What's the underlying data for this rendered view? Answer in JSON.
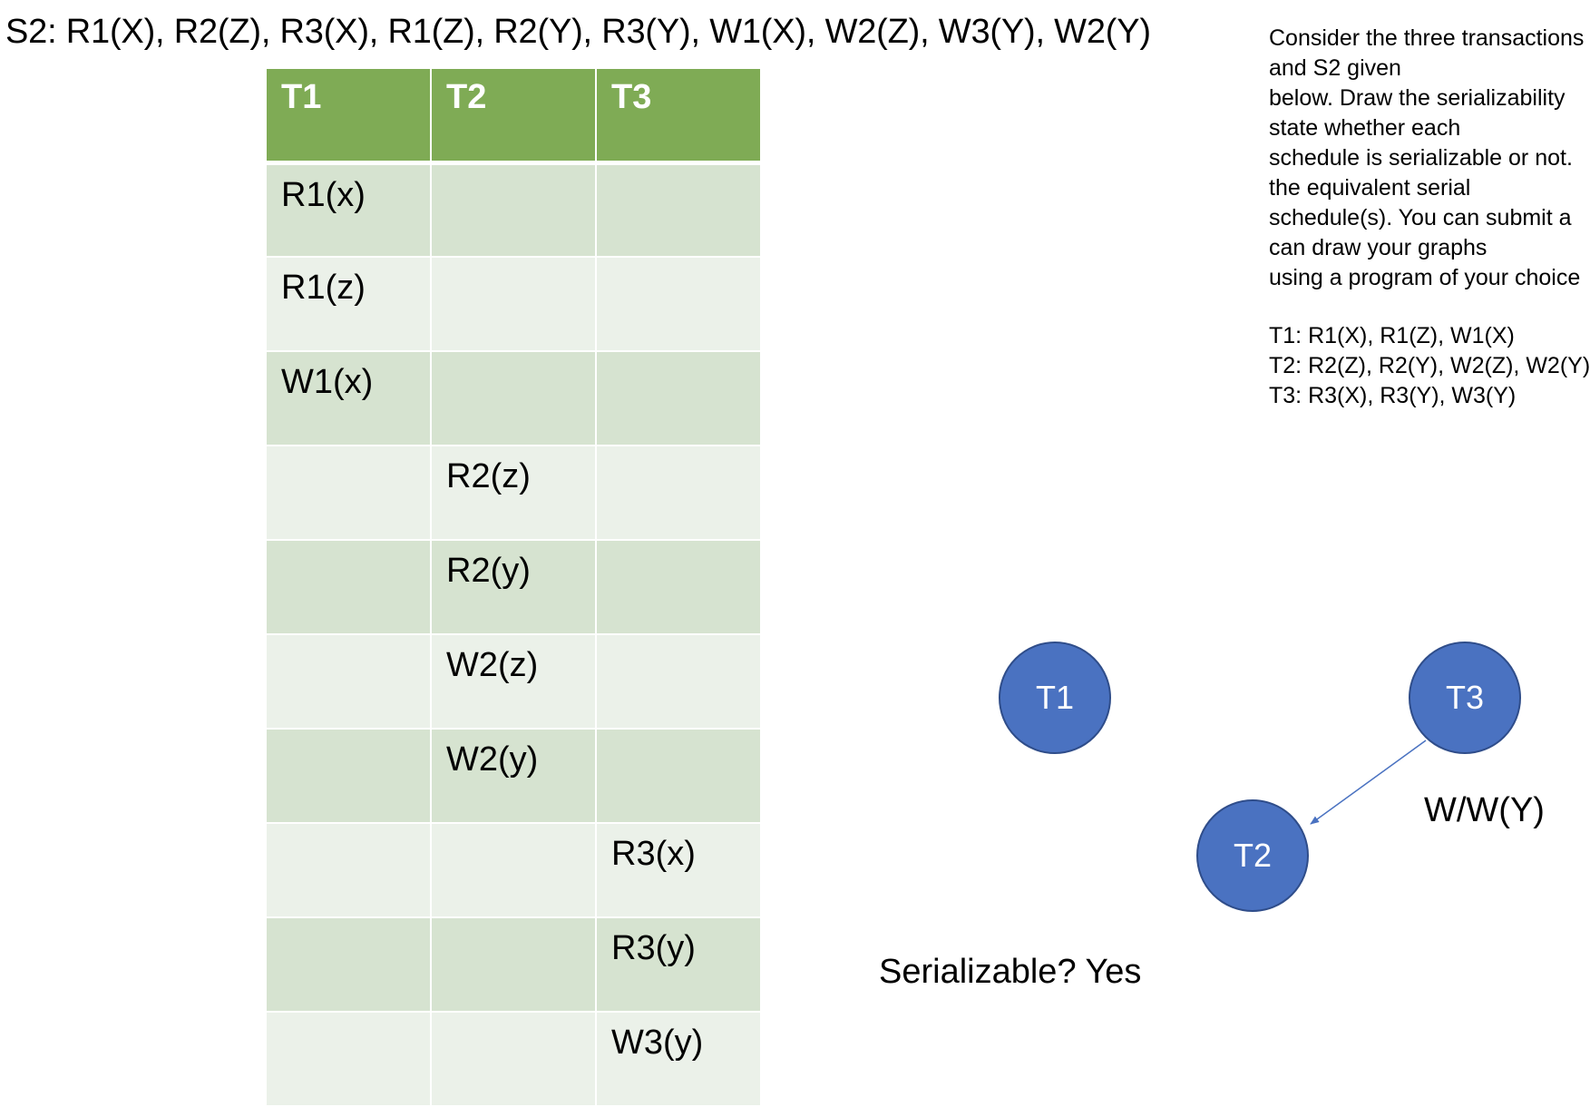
{
  "schedule_title": "S2: R1(X), R2(Z), R3(X), R1(Z), R2(Y), R3(Y), W1(X), W2(Z), W3(Y), W2(Y)",
  "table": {
    "headers": [
      "T1",
      "T2",
      "T3"
    ],
    "rows": [
      [
        "R1(x)",
        "",
        ""
      ],
      [
        "R1(z)",
        "",
        ""
      ],
      [
        "W1(x)",
        "",
        ""
      ],
      [
        "",
        "R2(z)",
        ""
      ],
      [
        "",
        "R2(y)",
        ""
      ],
      [
        "",
        "W2(z)",
        ""
      ],
      [
        "",
        "W2(y)",
        ""
      ],
      [
        "",
        "",
        "R3(x)"
      ],
      [
        "",
        "",
        "R3(y)"
      ],
      [
        "",
        "",
        "W3(y)"
      ]
    ]
  },
  "question": {
    "lines": [
      "Consider the three transactions",
      "and S2 given",
      "below. Draw the serializability",
      "state whether each",
      "schedule is serializable or not.",
      "the equivalent serial",
      "schedule(s). You can submit a",
      "can draw your graphs",
      "using a program of your choice"
    ],
    "transactions": [
      "T1: R1(X), R1(Z), W1(X)",
      "T2: R2(Z), R2(Y), W2(Z), W2(Y)",
      "T3: R3(X), R3(Y), W3(Y)"
    ]
  },
  "graph": {
    "nodes": [
      {
        "id": "T1",
        "label": "T1"
      },
      {
        "id": "T2",
        "label": "T2"
      },
      {
        "id": "T3",
        "label": "T3"
      }
    ],
    "edges": [
      {
        "from": "T3",
        "to": "T2",
        "label": "W/W(Y)"
      }
    ],
    "node_color": "#4a72c1",
    "edge_color": "#4a72c1"
  },
  "serializable_text": "Serializable? Yes",
  "header_color": "#7fab55"
}
